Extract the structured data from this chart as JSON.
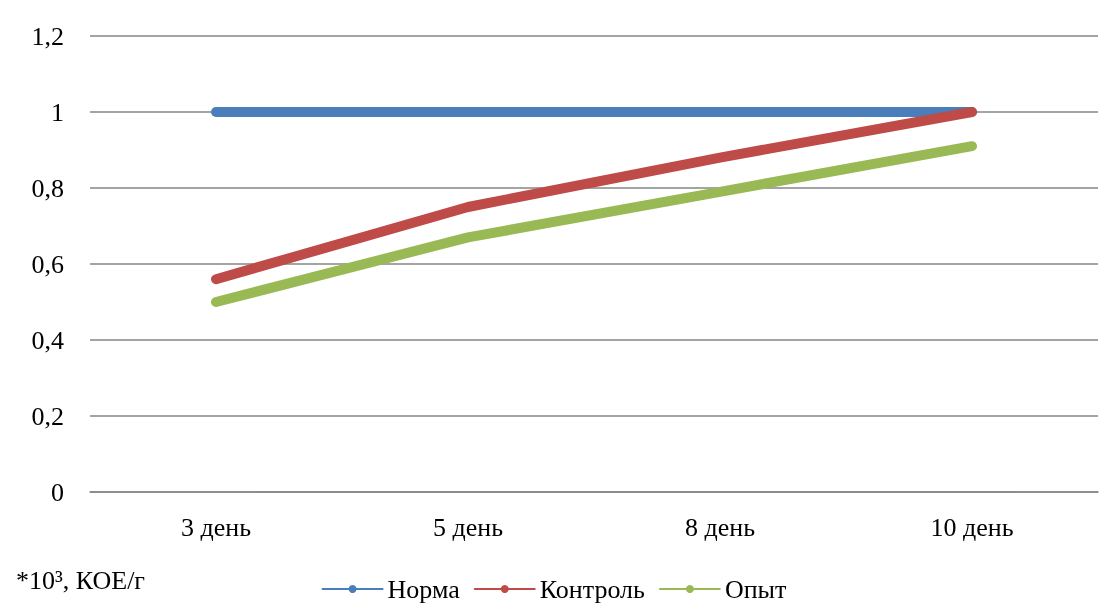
{
  "chart_data": {
    "type": "line",
    "categories": [
      "3 день",
      "5 день",
      "8 день",
      "10 день"
    ],
    "series": [
      {
        "name": "Норма",
        "color": "#4a7ebb",
        "values": [
          1,
          1,
          1,
          1
        ]
      },
      {
        "name": "Контроль",
        "color": "#be4b48",
        "values": [
          0.56,
          0.75,
          0.88,
          1
        ]
      },
      {
        "name": "Опыт",
        "color": "#98b954",
        "values": [
          0.5,
          0.67,
          0.79,
          0.91
        ]
      }
    ],
    "ylim": [
      0,
      1.2
    ],
    "yticks": [
      0,
      {
        "value": 0.2,
        "label": "0,2"
      },
      {
        "value": 0.4,
        "label": "0,4"
      },
      {
        "value": 0.6,
        "label": "0,6"
      },
      {
        "value": 0.8,
        "label": "0,8"
      },
      1,
      {
        "value": 1.2,
        "label": "1,2"
      }
    ],
    "grid": "y",
    "legend": "bottom",
    "marker": "none",
    "line_style": "solid",
    "annotations": [
      "*10³, КОЕ/г"
    ]
  }
}
